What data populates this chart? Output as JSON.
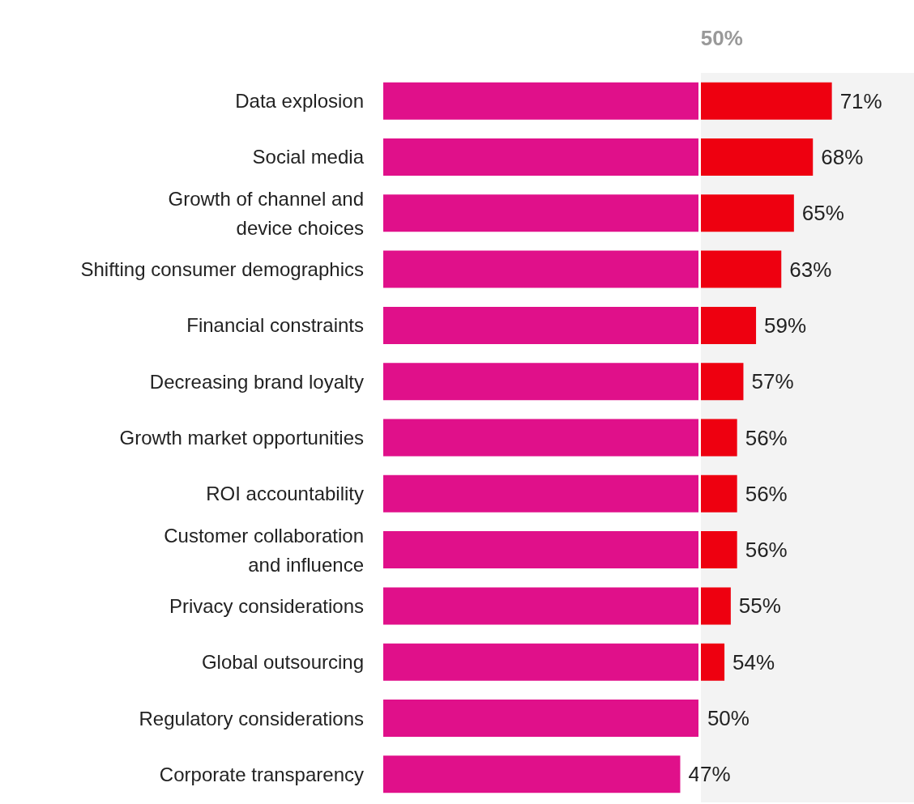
{
  "chart_data": {
    "type": "bar",
    "orientation": "horizontal",
    "categories": [
      "Data explosion",
      "Social media",
      "Growth of channel and\ndevice choices",
      "Shifting consumer demographics",
      "Financial constraints",
      "Decreasing brand loyalty",
      "Growth market opportunities",
      "ROI accountability",
      "Customer collaboration\nand influence",
      "Privacy considerations",
      "Global outsourcing",
      "Regulatory considerations",
      "Corporate transparency"
    ],
    "series": [
      {
        "color": "#e0108a",
        "values": [
          71,
          68,
          65,
          63,
          59,
          57,
          56,
          56,
          56,
          55,
          54,
          50,
          47
        ],
        "value_labels": [
          "71%",
          "68%",
          "65%",
          "63%",
          "59%",
          "57%",
          "56%",
          "56%",
          "56%",
          "55%",
          "54%",
          "50%",
          "47%"
        ]
      }
    ],
    "xlim": [
      0,
      84
    ],
    "tick_labels": "y",
    "ref_lines": [
      {
        "axis": "x",
        "value": 50,
        "label": "50%",
        "color": "#ffffff"
      }
    ],
    "bands": [
      {
        "axis": "x",
        "from": 50,
        "to": 84,
        "color": "#f3f3f3"
      }
    ]
  }
}
